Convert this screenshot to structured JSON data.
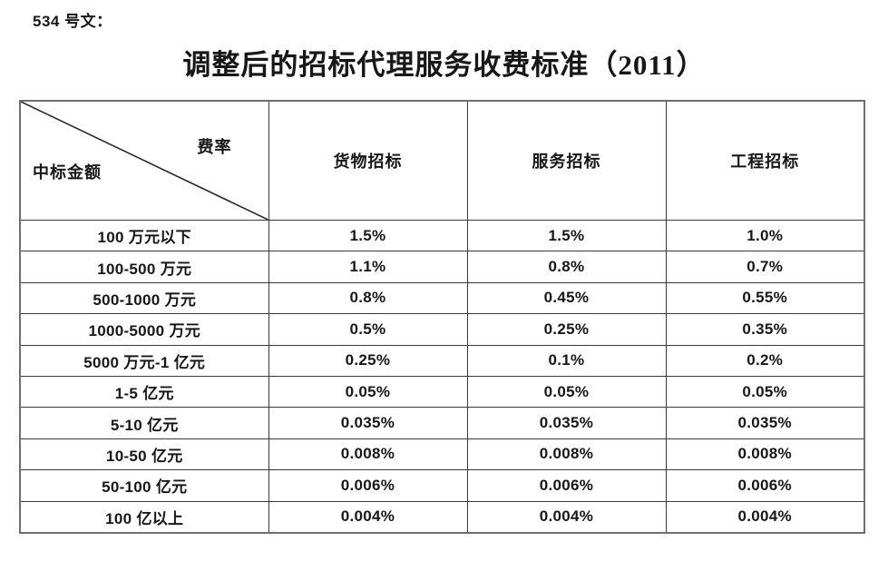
{
  "doc": {
    "doc_number": "534 号文：",
    "title": "调整后的招标代理服务收费标准（2011）"
  },
  "table": {
    "corner": {
      "top_right": "费率",
      "bottom_left": "中标金额"
    },
    "columns": [
      "货物招标",
      "服务招标",
      "工程招标"
    ],
    "rows": [
      {
        "label": "100 万元以下",
        "values": [
          "1.5%",
          "1.5%",
          "1.0%"
        ]
      },
      {
        "label": "100-500 万元",
        "values": [
          "1.1%",
          "0.8%",
          "0.7%"
        ]
      },
      {
        "label": "500-1000 万元",
        "values": [
          "0.8%",
          "0.45%",
          "0.55%"
        ]
      },
      {
        "label": "1000-5000 万元",
        "values": [
          "0.5%",
          "0.25%",
          "0.35%"
        ]
      },
      {
        "label": "5000 万元-1 亿元",
        "values": [
          "0.25%",
          "0.1%",
          "0.2%"
        ]
      },
      {
        "label": "1-5 亿元",
        "values": [
          "0.05%",
          "0.05%",
          "0.05%"
        ]
      },
      {
        "label": "5-10 亿元",
        "values": [
          "0.035%",
          "0.035%",
          "0.035%"
        ]
      },
      {
        "label": "10-50 亿元",
        "values": [
          "0.008%",
          "0.008%",
          "0.008%"
        ]
      },
      {
        "label": "50-100 亿元",
        "values": [
          "0.006%",
          "0.006%",
          "0.006%"
        ]
      },
      {
        "label": "100 亿以上",
        "values": [
          "0.004%",
          "0.004%",
          "0.004%"
        ]
      }
    ],
    "border_color": "#3a3a3a",
    "text_color": "#171717"
  }
}
